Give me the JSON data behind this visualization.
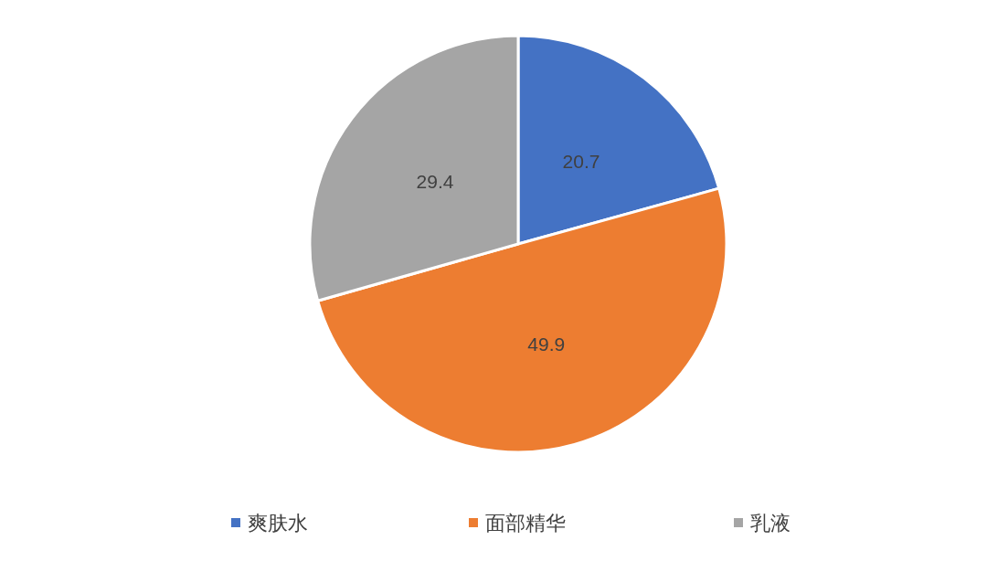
{
  "chart_data": {
    "type": "pie",
    "categories": [
      "爽肤水",
      "面部精华",
      "乳液"
    ],
    "values": [
      20.7,
      49.9,
      29.4
    ],
    "colors": [
      "#4472c4",
      "#ed7d31",
      "#a5a5a5"
    ],
    "data_labels": true,
    "legend": "bottom"
  }
}
